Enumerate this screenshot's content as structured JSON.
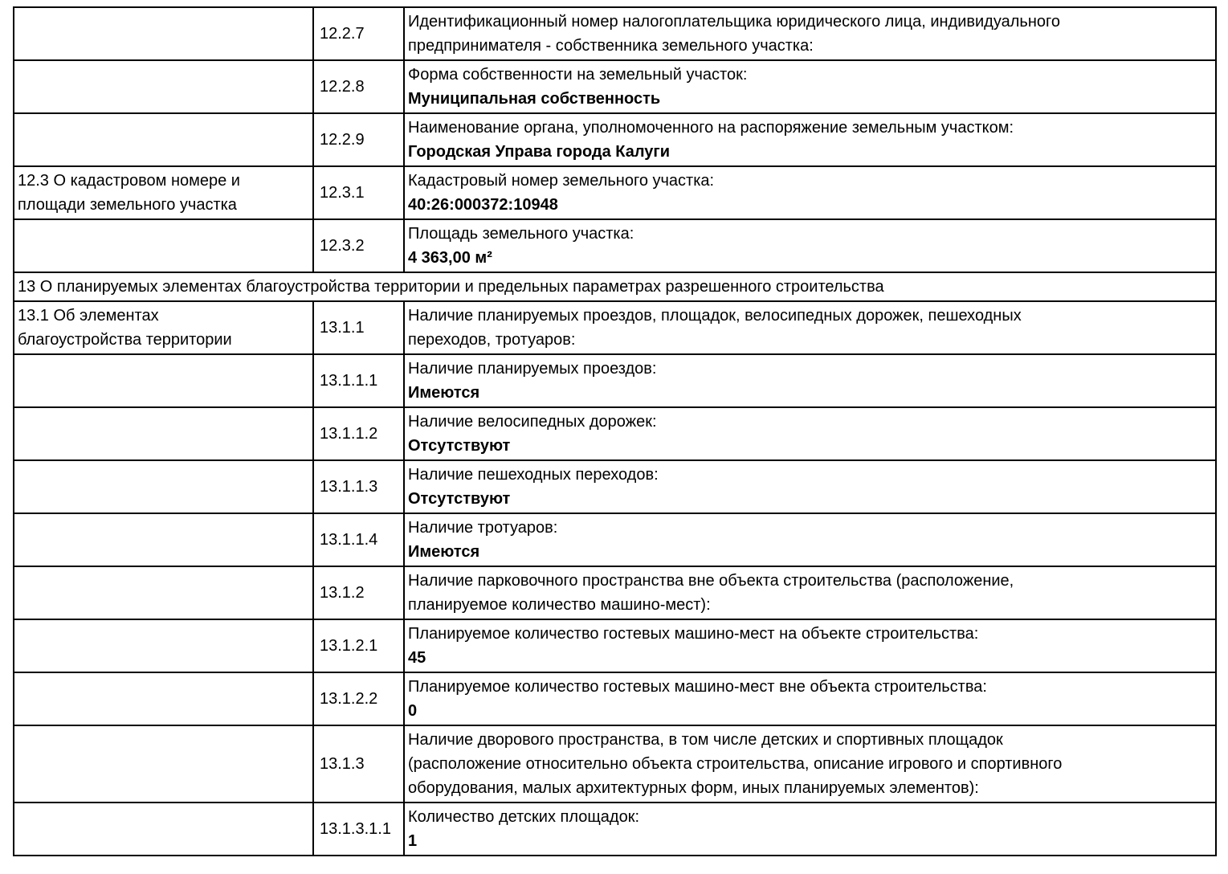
{
  "colors": {
    "text": "#000000",
    "border": "#000000",
    "background": "#ffffff"
  },
  "table": {
    "rows": [
      {
        "type": "item",
        "section_label": "",
        "number": "12.2.7",
        "label": "Идентификационный номер налогоплательщика юридического лица, индивидуального\nпредпринимателя - собственника земельного участка:",
        "value": ""
      },
      {
        "type": "item",
        "section_label": "",
        "number": "12.2.8",
        "label": "Форма собственности на земельный участок:",
        "value": "Муниципальная собственность"
      },
      {
        "type": "item",
        "section_label": "",
        "number": "12.2.9",
        "label": "Наименование органа, уполномоченного на распоряжение земельным участком:",
        "value": "Городская Управа города Калуги"
      },
      {
        "type": "item",
        "section_label": "12.3 О кадастровом номере и\nплощади земельного участка",
        "number": "12.3.1",
        "label": "Кадастровый номер земельного участка:",
        "value": "40:26:000372:10948"
      },
      {
        "type": "item",
        "section_label": "",
        "number": "12.3.2",
        "label": "Площадь земельного участка:",
        "value": "4 363,00 м²"
      },
      {
        "type": "section",
        "label": "13 О планируемых элементах благоустройства территории и предельных параметрах разрешенного строительства"
      },
      {
        "type": "item",
        "section_label": "13.1 Об элементах\nблагоустройства территории",
        "number": "13.1.1",
        "label": "Наличие планируемых проездов, площадок, велосипедных дорожек, пешеходных\nпереходов, тротуаров:",
        "value": ""
      },
      {
        "type": "item",
        "section_label": "",
        "number": "13.1.1.1",
        "label": "Наличие планируемых проездов:",
        "value": "Имеются"
      },
      {
        "type": "item",
        "section_label": "",
        "number": "13.1.1.2",
        "label": "Наличие велосипедных дорожек:",
        "value": "Отсутствуют"
      },
      {
        "type": "item",
        "section_label": "",
        "number": "13.1.1.3",
        "label": "Наличие пешеходных переходов:",
        "value": "Отсутствуют"
      },
      {
        "type": "item",
        "section_label": "",
        "number": "13.1.1.4",
        "label": "Наличие тротуаров:",
        "value": "Имеются"
      },
      {
        "type": "item",
        "section_label": "",
        "number": "13.1.2",
        "label": "Наличие парковочного пространства вне объекта строительства (расположение,\nпланируемое количество машино-мест):",
        "value": ""
      },
      {
        "type": "item",
        "section_label": "",
        "number": "13.1.2.1",
        "label": "Планируемое количество гостевых машино-мест на объекте строительства:",
        "value": "45"
      },
      {
        "type": "item",
        "section_label": "",
        "number": "13.1.2.2",
        "label": "Планируемое количество гостевых машино-мест вне объекта строительства:",
        "value": "0"
      },
      {
        "type": "item",
        "section_label": "",
        "number": "13.1.3",
        "label": "Наличие дворового пространства, в том числе детских и спортивных площадок\n(расположение относительно объекта строительства, описание игрового и спортивного\nоборудования, малых архитектурных форм, иных планируемых элементов):",
        "value": ""
      },
      {
        "type": "item",
        "section_label": "",
        "number": "13.1.3.1.1",
        "label": "Количество детских площадок:",
        "value": "1"
      }
    ]
  }
}
